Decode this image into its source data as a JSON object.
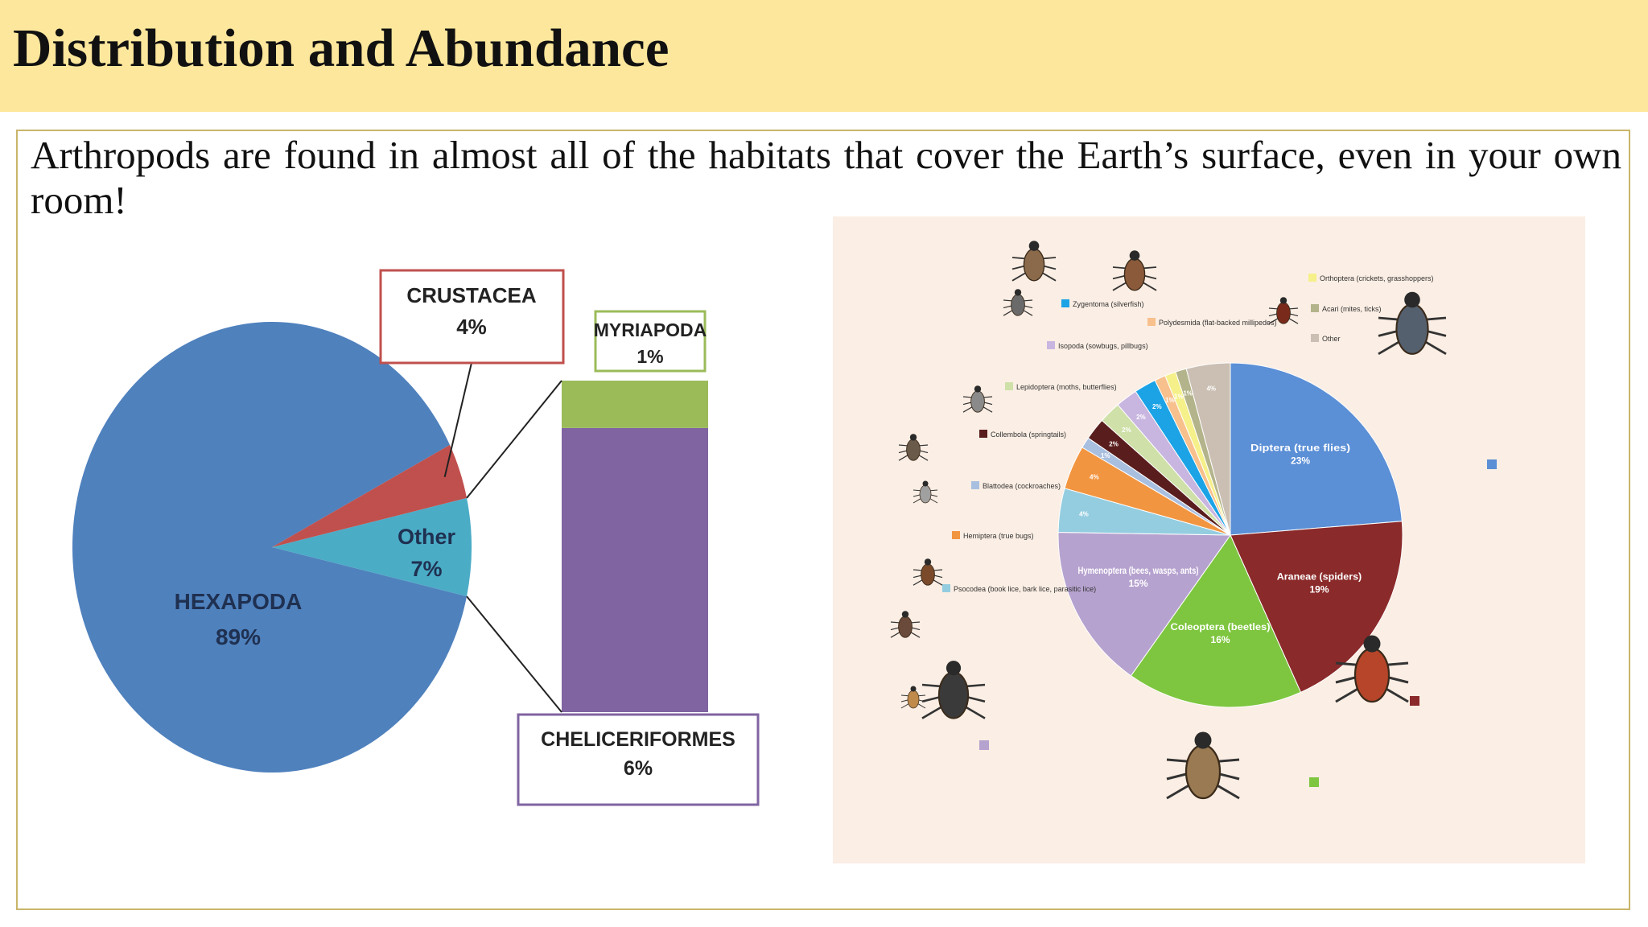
{
  "title": "Distribution and Abundance",
  "intro": "Arthropods are found in almost all of the habitats that cover the Earth’s surface, even in your own room!",
  "chart_data": [
    {
      "type": "pie",
      "slices": [
        {
          "label": "HEXAPODA",
          "value": 89,
          "value_label": "89%",
          "color": "#4f81bd"
        },
        {
          "label": "CRUSTACEA",
          "value": 4,
          "value_label": "4%",
          "color": "#c0504d"
        },
        {
          "label": "Other",
          "value": 7,
          "value_label": "7%",
          "color": "#4bacc6"
        }
      ],
      "breakdown": {
        "of": "Other",
        "type": "stacked-bar",
        "segments": [
          {
            "label": "CHELICERIFORMES",
            "value": 6,
            "value_label": "6%",
            "color": "#8064a2",
            "border": "#8064a2"
          },
          {
            "label": "MYRIAPODA",
            "value": 1,
            "value_label": "1%",
            "color": "#9bbb59",
            "border": "#9bbb59"
          }
        ]
      },
      "crustacea_box_border": "#c0504d"
    },
    {
      "type": "pie",
      "slices": [
        {
          "label": "Diptera (true flies)",
          "value": 23,
          "value_label": "23%",
          "color": "#5b8fd6"
        },
        {
          "label": "Araneae (spiders)",
          "value": 19,
          "value_label": "19%",
          "color": "#8b2a2a"
        },
        {
          "label": "Coleoptera (beetles)",
          "value": 16,
          "value_label": "16%",
          "color": "#7ec63f"
        },
        {
          "label": "Hymenoptera (bees, wasps, ants)",
          "value": 15,
          "value_label": "15%",
          "color": "#b6a2cf"
        },
        {
          "label": "Psocodea (book lice, bark lice, parasitic lice)",
          "value": 4,
          "value_label": "4%",
          "color": "#95cde0"
        },
        {
          "label": "Hemiptera (true bugs)",
          "value": 4,
          "value_label": "4%",
          "color": "#f29540"
        },
        {
          "label": "Blattodea (cockroaches)",
          "value": 1,
          "value_label": "1%",
          "color": "#a9bfe0"
        },
        {
          "label": "Collembola (springtails)",
          "value": 2,
          "value_label": "2%",
          "color": "#5a1d1d"
        },
        {
          "label": "Lepidoptera (moths, butterflies)",
          "value": 2,
          "value_label": "2%",
          "color": "#cfe0a8"
        },
        {
          "label": "Isopoda (sowbugs, pillbugs)",
          "value": 2,
          "value_label": "2%",
          "color": "#c9b6e0"
        },
        {
          "label": "Zygentoma (silverfish)",
          "value": 2,
          "value_label": "2%",
          "color": "#1ba3e6"
        },
        {
          "label": "Polydesmida (flat-backed millipedes)",
          "value": 1,
          "value_label": "1%",
          "color": "#f7c08c"
        },
        {
          "label": "Orthoptera (crickets, grasshoppers)",
          "value": 1,
          "value_label": "1%",
          "color": "#f6f08a"
        },
        {
          "label": "Acari (mites, ticks)",
          "value": 1,
          "value_label": "1%",
          "color": "#b4b48c"
        },
        {
          "label": "Other",
          "value": 4,
          "value_label": "4%",
          "color": "#cbbfb3"
        }
      ]
    }
  ]
}
